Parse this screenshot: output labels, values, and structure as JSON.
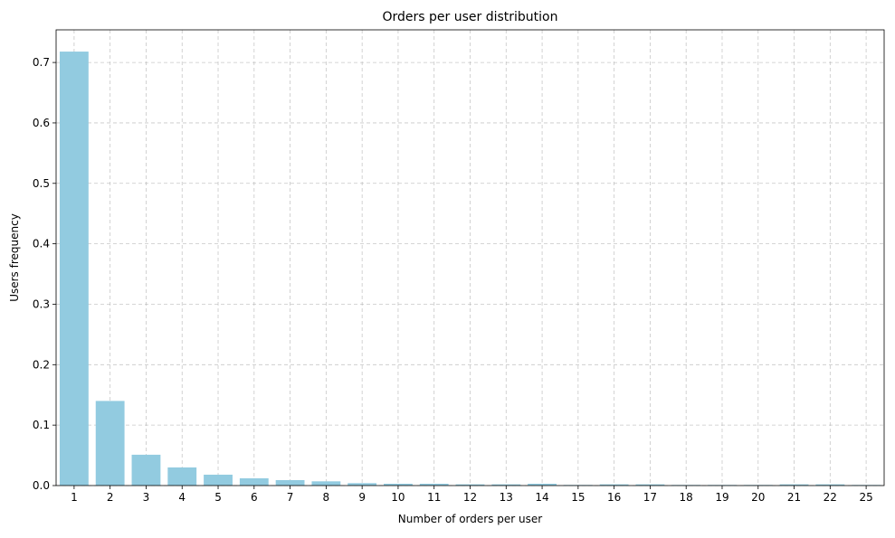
{
  "chart_data": {
    "type": "bar",
    "title": "Orders per user distribution",
    "xlabel": "Number of orders per user",
    "ylabel": "Users frequency",
    "categories": [
      "1",
      "2",
      "3",
      "4",
      "5",
      "6",
      "7",
      "8",
      "9",
      "10",
      "11",
      "12",
      "13",
      "14",
      "15",
      "16",
      "17",
      "18",
      "19",
      "20",
      "21",
      "22",
      "25"
    ],
    "values": [
      0.718,
      0.14,
      0.051,
      0.03,
      0.018,
      0.012,
      0.009,
      0.007,
      0.004,
      0.003,
      0.003,
      0.002,
      0.002,
      0.003,
      0.001,
      0.002,
      0.002,
      0.001,
      0.001,
      0.001,
      0.002,
      0.002,
      0.001
    ],
    "yticks": [
      "0.0",
      "0.1",
      "0.2",
      "0.3",
      "0.4",
      "0.5",
      "0.6",
      "0.7"
    ],
    "ylim": [
      0,
      0.754
    ],
    "grid": true,
    "bar_color": "#92cbe0"
  }
}
